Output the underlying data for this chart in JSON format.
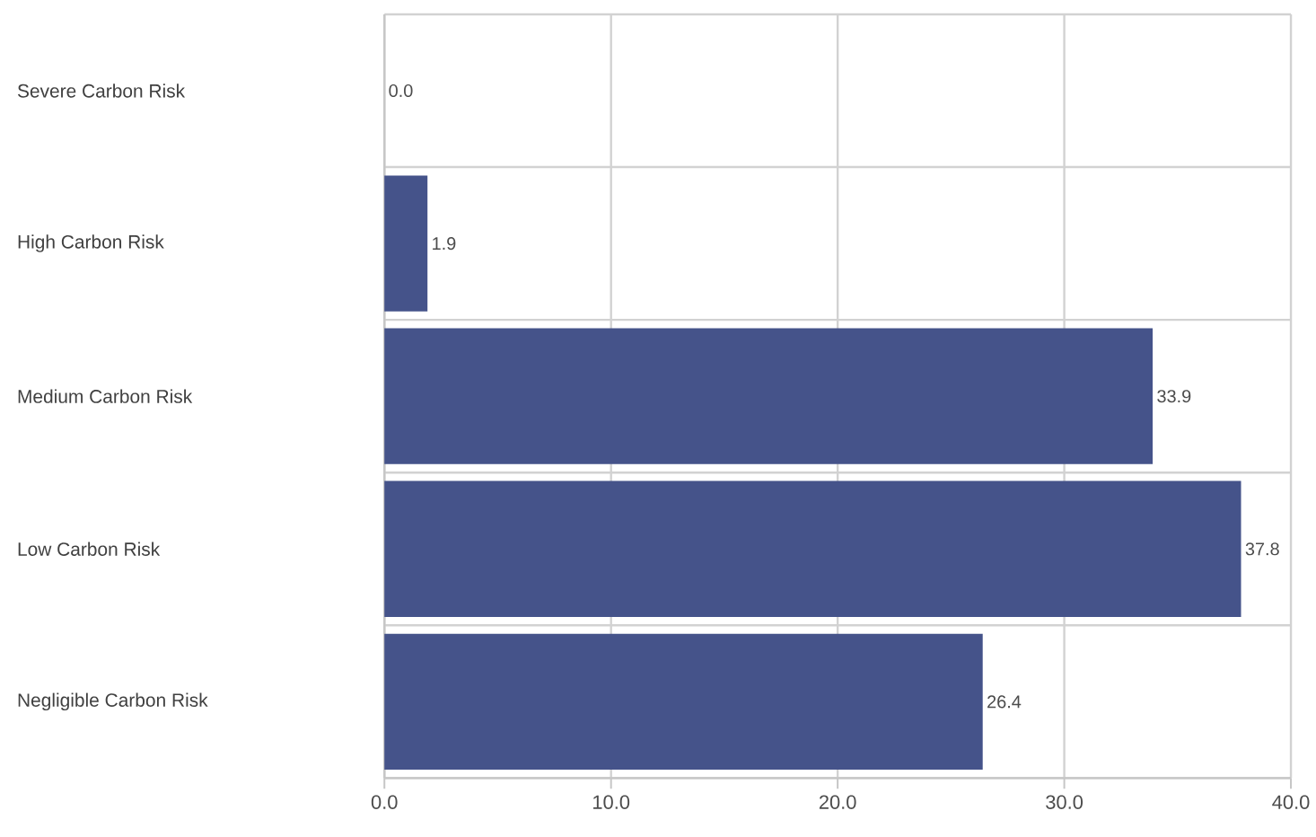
{
  "chart_data": {
    "type": "bar",
    "orientation": "horizontal",
    "categories": [
      "Severe Carbon Risk",
      "High Carbon Risk",
      "Medium Carbon Risk",
      "Low Carbon Risk",
      "Negligible Carbon Risk"
    ],
    "values": [
      0.0,
      1.9,
      33.9,
      37.8,
      26.4
    ],
    "value_labels": [
      "0.0",
      "1.9",
      "33.9",
      "37.8",
      "26.4"
    ],
    "color": "#45538a",
    "xlim": [
      0,
      40
    ],
    "xticks": [
      {
        "value": 0,
        "label": "0.0"
      },
      {
        "value": 10,
        "label": "10.0"
      },
      {
        "value": 20,
        "label": "20.0"
      },
      {
        "value": 30,
        "label": "30.0"
      },
      {
        "value": 40,
        "label": "40.0"
      }
    ],
    "grid": true
  }
}
